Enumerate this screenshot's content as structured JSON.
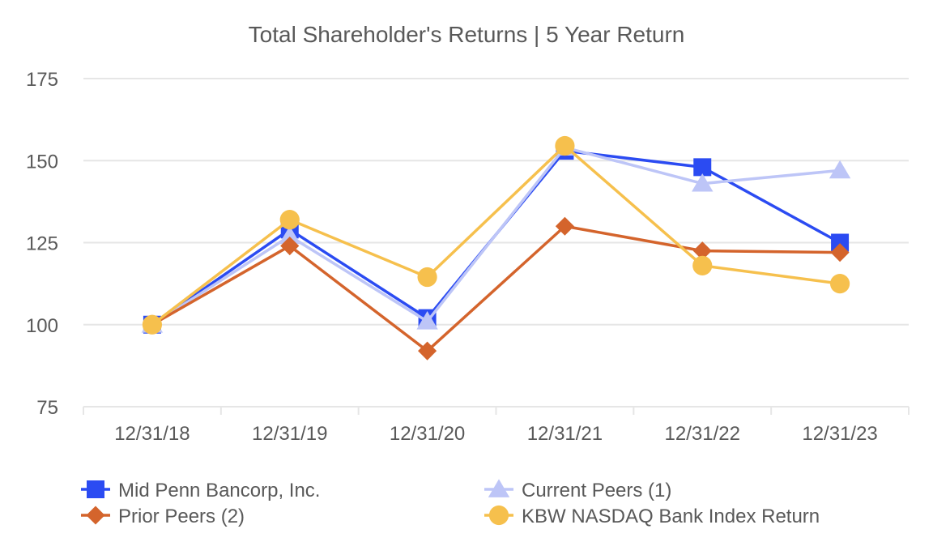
{
  "chart_data": {
    "type": "line",
    "title": "Total Shareholder's Returns | 5 Year Return",
    "xlabel": "",
    "ylabel": "",
    "categories": [
      "12/31/18",
      "12/31/19",
      "12/31/20",
      "12/31/21",
      "12/31/22",
      "12/31/23"
    ],
    "ylim": [
      75,
      175
    ],
    "yticks": [
      75,
      100,
      125,
      150,
      175
    ],
    "grid": true,
    "legend_position": "bottom",
    "series": [
      {
        "name": "Mid Penn Bancorp, Inc.",
        "marker": "square",
        "color": "#2B4BF2",
        "values": [
          100,
          129,
          102,
          153,
          148,
          125
        ]
      },
      {
        "name": "Current Peers (1)",
        "marker": "triangle",
        "color": "#BDC5F7",
        "values": [
          100,
          127,
          101,
          154,
          143,
          147
        ]
      },
      {
        "name": "Prior Peers (2)",
        "marker": "diamond",
        "color": "#D4642C",
        "values": [
          100,
          124,
          92,
          130,
          122.5,
          122
        ]
      },
      {
        "name": "KBW NASDAQ Bank Index Return",
        "marker": "circle",
        "color": "#F6C04D",
        "values": [
          100,
          132,
          114.5,
          154.5,
          118,
          112.5
        ]
      }
    ]
  }
}
